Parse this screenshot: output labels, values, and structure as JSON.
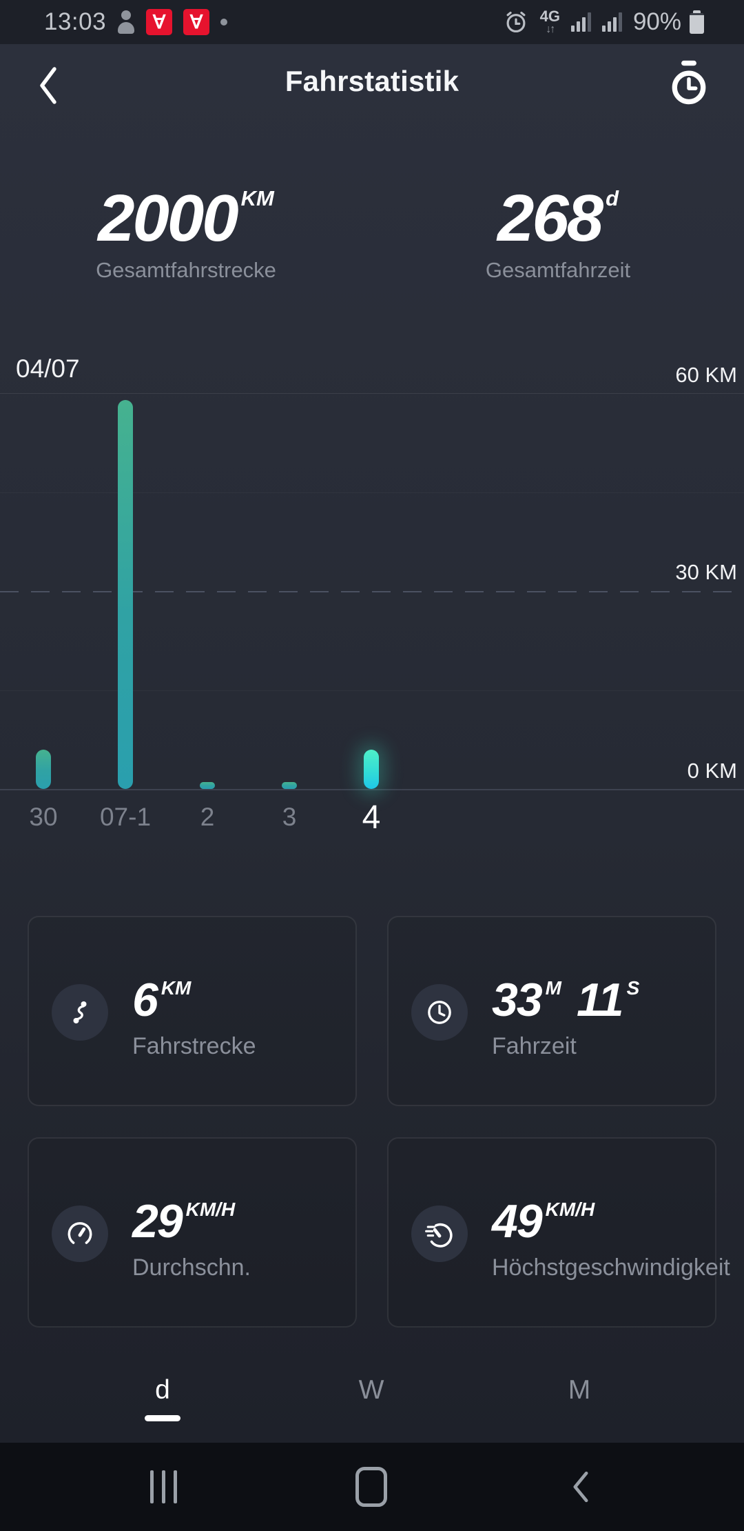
{
  "status_bar": {
    "time": "13:03",
    "network": "4G",
    "battery": "90%",
    "notification_icons": [
      "person-icon",
      "app-badge-icon",
      "app-badge-icon",
      "notification-dot"
    ],
    "badge_glyph": "∀",
    "badge_red": "#e6132e"
  },
  "header": {
    "title": "Fahrstatistik"
  },
  "totals": {
    "distance": {
      "value": "2000",
      "unit": "KM",
      "label": "Gesamtfahrstrecke"
    },
    "time": {
      "value": "268",
      "unit": "d",
      "label": "Gesamtfahrzeit"
    }
  },
  "chart_data": {
    "type": "bar",
    "title": "",
    "date_label": "04/07",
    "categories": [
      "30",
      "07-1",
      "2",
      "3",
      "4"
    ],
    "values": [
      6,
      59,
      1,
      1,
      6
    ],
    "selected_index": 4,
    "selected_category": "4",
    "unit": "KM",
    "y_ticks": {
      "top": "60 KM",
      "mid": "30 KM",
      "bottom": "0 KM"
    },
    "ylim": [
      0,
      60
    ],
    "grid": "horizontal, dashed mid line at 30 KM",
    "bar_color_top": "#46b28f",
    "bar_color_bottom": "#2a9fae",
    "selected_color": "#35e8d0"
  },
  "cards": [
    {
      "icon": "route-icon",
      "value": "6",
      "unit": "KM",
      "value2": "",
      "unit2": "",
      "label": "Fahrstrecke"
    },
    {
      "icon": "clock-icon",
      "value": "33",
      "unit": "M",
      "value2": "11",
      "unit2": "S",
      "label": "Fahrzeit"
    },
    {
      "icon": "speedometer-icon",
      "value": "29",
      "unit": "KM/H",
      "value2": "",
      "unit2": "",
      "label": "Durchschn."
    },
    {
      "icon": "max-speed-icon",
      "value": "49",
      "unit": "KM/H",
      "value2": "",
      "unit2": "",
      "label": "Höchstgeschwindigkeit"
    }
  ],
  "tabs": {
    "items": [
      {
        "label": "d",
        "active": true
      },
      {
        "label": "W",
        "active": false
      },
      {
        "label": "M",
        "active": false
      }
    ]
  },
  "nav_bar": {
    "icons": [
      "recents-icon",
      "home-icon",
      "back-icon"
    ]
  },
  "colors": {
    "background": "#262a34",
    "status_bar_bg": "#1d2028",
    "nav_bar_bg": "#0d0f14",
    "text_gray": "#8b909b",
    "accent_teal": "#2a9fae",
    "accent_green": "#46b28f",
    "selected_cyan": "#35e8d0",
    "badge_red": "#e6132e"
  }
}
